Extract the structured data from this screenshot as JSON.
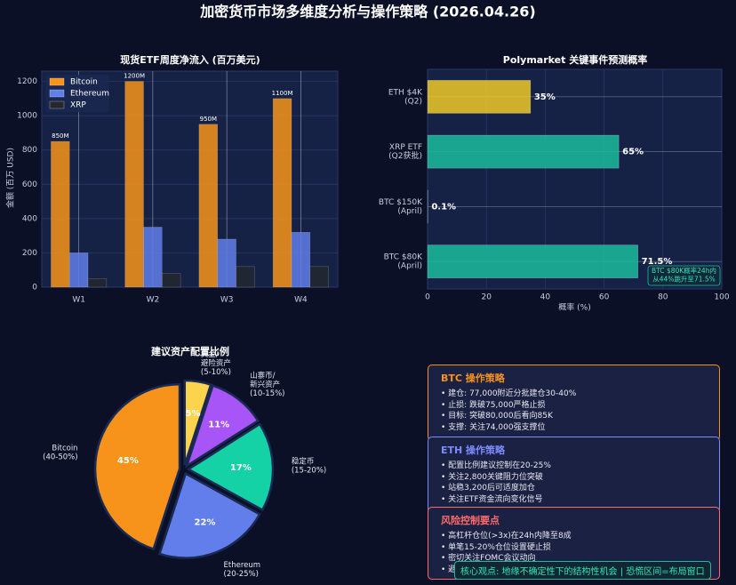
{
  "title": "加密货币市场多维度分析与操作策略 (2026.04.26)",
  "chart_data": [
    {
      "type": "bar",
      "title": "现货ETF周度净流入 (百万美元)",
      "ylabel": "金额 (百万 USD)",
      "categories": [
        "W1",
        "W2",
        "W3",
        "W4"
      ],
      "series": [
        {
          "name": "Bitcoin",
          "color": "#f7931a",
          "values": [
            850,
            1200,
            950,
            1100
          ],
          "value_labels": [
            "850M",
            "1200M",
            "950M",
            "1100M"
          ]
        },
        {
          "name": "Ethereum",
          "color": "#627eea",
          "values": [
            200,
            350,
            280,
            320
          ]
        },
        {
          "name": "XRP",
          "color": "#23292f",
          "values": [
            50,
            80,
            120,
            120
          ]
        }
      ],
      "ylim": [
        0,
        1260
      ],
      "yticks": [
        0,
        200,
        400,
        600,
        800,
        1000,
        1200
      ],
      "grid": true,
      "legend": "upper left"
    },
    {
      "type": "barh",
      "title": "Polymarket 关键事件预测概率",
      "xlabel": "概率 (%)",
      "categories": [
        [
          "ETH $4K",
          "(Q2)"
        ],
        [
          "XRP ETF",
          "(Q2获批)"
        ],
        [
          "BTC $150K",
          "(April)"
        ],
        [
          "BTC $80K",
          "(April)"
        ]
      ],
      "values": [
        35,
        65,
        0.1,
        71.5
      ],
      "value_labels": [
        "35%",
        "65%",
        "0.1%",
        "71.5%"
      ],
      "colors": [
        "#f0c929",
        "#1abc9c",
        "#1abc9c",
        "#1abc9c"
      ],
      "xlim": [
        0,
        100
      ],
      "xticks": [
        0,
        20,
        40,
        60,
        80,
        100
      ],
      "grid": true,
      "annotation": [
        "BTC $80K概率24h内",
        "从44%跳升至71.5%"
      ]
    },
    {
      "type": "pie",
      "title": "建议资产配置比例",
      "labels": [
        [
          "Bitcoin",
          "(40-50%)"
        ],
        [
          "Ethereum",
          "(20-25%)"
        ],
        [
          "稳定币",
          "(15-20%)"
        ],
        [
          "山寨币/",
          "新兴资产",
          "(10-15%)"
        ],
        [
          "黄金/",
          "避险资产",
          "(5-10%)"
        ]
      ],
      "values": [
        45,
        22,
        17,
        11,
        5
      ],
      "value_labels": [
        "45%",
        "22%",
        "17%",
        "11%",
        "5%"
      ],
      "colors": [
        "#f7931a",
        "#627eea",
        "#14d1a6",
        "#a855f7",
        "#fcd34d"
      ]
    }
  ],
  "strategy_cards": [
    {
      "title": "BTC 操作策略",
      "color": "#f7931a",
      "items": [
        "• 建仓: 77,000附近分批建仓30-40%",
        "• 止损: 跌破75,000严格止损",
        "• 目标: 突破80,000后看向85K",
        "• 支撑: 关注74,000强支撑位"
      ]
    },
    {
      "title": "ETH 操作策略",
      "color": "#7b8cff",
      "items": [
        "• 配置比例建议控制在20-25%",
        "• 关注2,800关键阻力位突破",
        "• 站稳3,200后可适度加仓",
        "• 关注ETF资金流向变化信号"
      ]
    },
    {
      "title": "风险控制要点",
      "color": "#ff6b6b",
      "items": [
        "• 高杠杆仓位(>3x)在24h内降至8成",
        "• 单笔15-20%仓位设置硬止损",
        "• 密切关注FOMC会议动向",
        "• 避免追涨杀跌情绪化交易"
      ]
    }
  ],
  "banner": "核心观点: 地缘不确定性下的结构性机会 | 恐慌区间=布局窗口"
}
